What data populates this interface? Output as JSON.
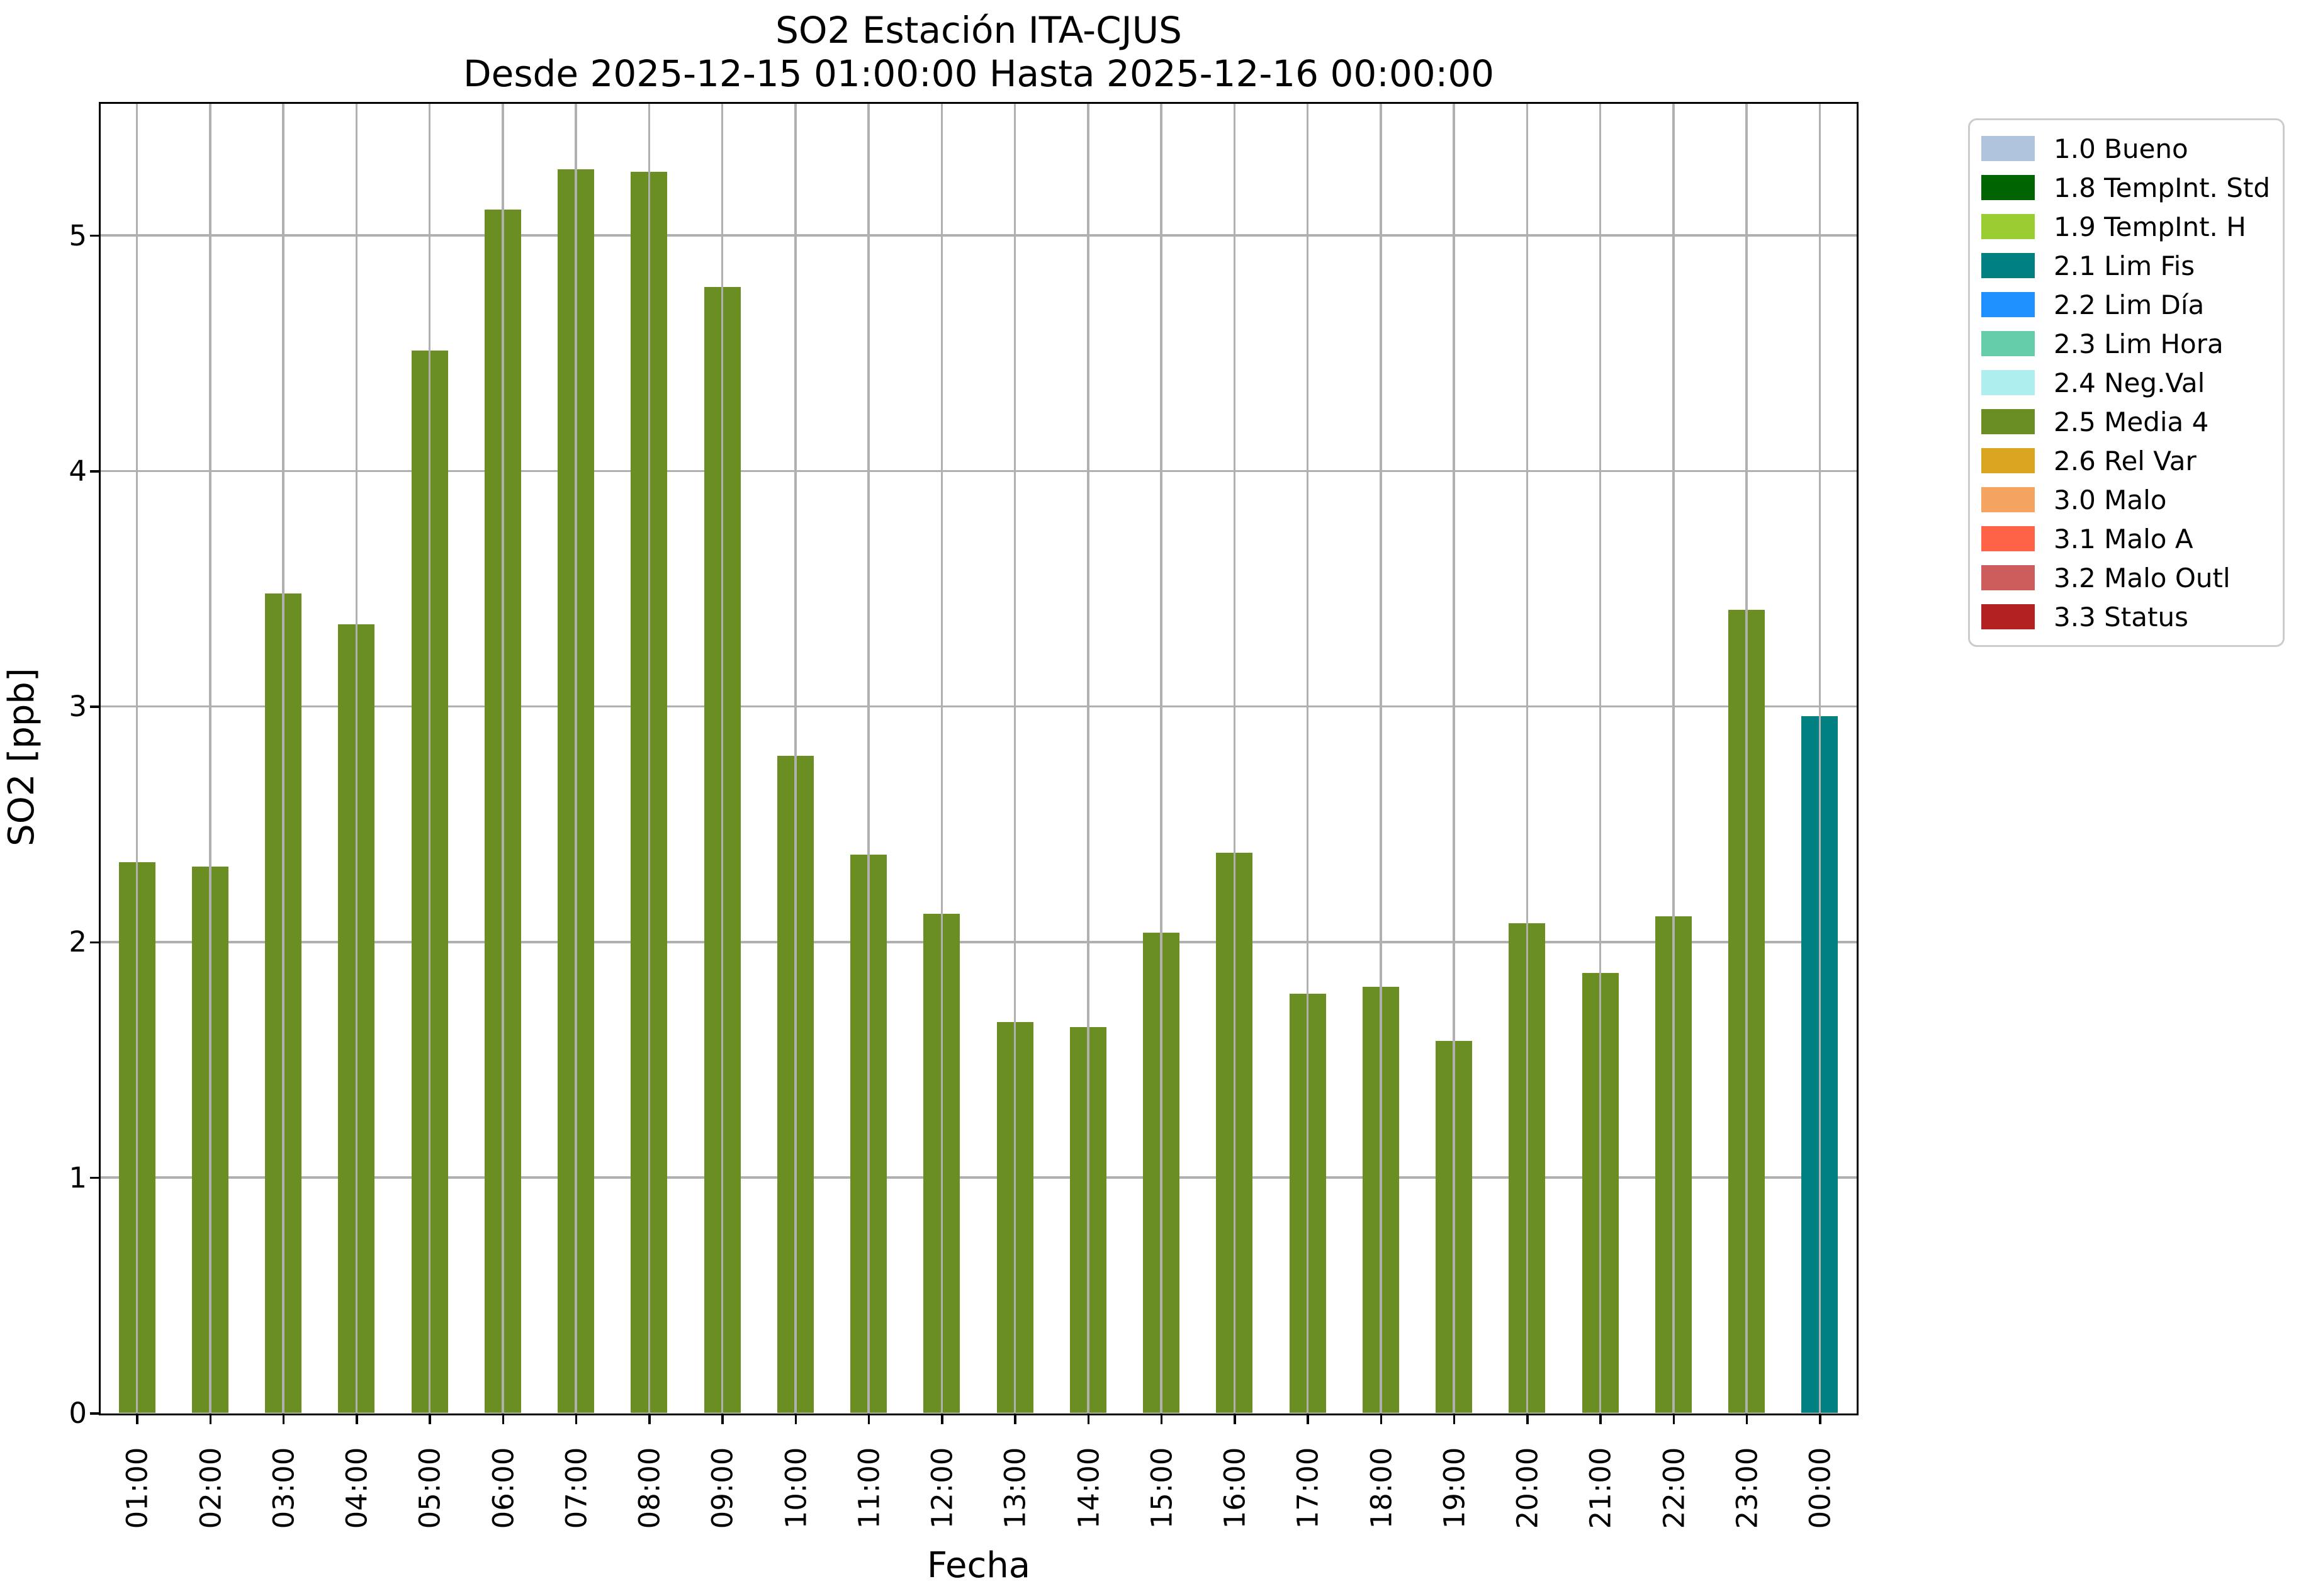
{
  "figure": {
    "title_line1": "SO2 Estación ITA-CJUS",
    "title_line2": "Desde 2025-12-15 01:00:00 Hasta 2025-12-16 00:00:00"
  },
  "chart_data": {
    "type": "bar",
    "title": "SO2 Estación ITA-CJUS\nDesde 2025-12-15 01:00:00 Hasta 2025-12-16 00:00:00",
    "xlabel": "Fecha",
    "ylabel": "SO2 [ppb]",
    "ylim": [
      0,
      5.56
    ],
    "y_ticks": [
      0,
      1,
      2,
      3,
      4,
      5
    ],
    "grid": true,
    "grid_color": "#b0b0b0",
    "legend_position": "upper-right-outside",
    "categories": [
      "01:00",
      "02:00",
      "03:00",
      "04:00",
      "05:00",
      "06:00",
      "07:00",
      "08:00",
      "09:00",
      "10:00",
      "11:00",
      "12:00",
      "13:00",
      "14:00",
      "15:00",
      "16:00",
      "17:00",
      "18:00",
      "19:00",
      "20:00",
      "21:00",
      "22:00",
      "23:00",
      "00:00"
    ],
    "values": [
      2.34,
      2.32,
      3.48,
      3.35,
      4.51,
      5.11,
      5.28,
      5.27,
      4.78,
      2.79,
      2.37,
      2.12,
      1.66,
      1.64,
      2.04,
      2.38,
      1.78,
      1.81,
      1.58,
      2.08,
      1.87,
      2.11,
      3.41,
      2.96
    ],
    "statuses": [
      "2.5 Media 4",
      "2.5 Media 4",
      "2.5 Media 4",
      "2.5 Media 4",
      "2.5 Media 4",
      "2.5 Media 4",
      "2.5 Media 4",
      "2.5 Media 4",
      "2.5 Media 4",
      "2.5 Media 4",
      "2.5 Media 4",
      "2.5 Media 4",
      "2.5 Media 4",
      "2.5 Media 4",
      "2.5 Media 4",
      "2.5 Media 4",
      "2.5 Media 4",
      "2.5 Media 4",
      "2.5 Media 4",
      "2.5 Media 4",
      "2.5 Media 4",
      "2.5 Media 4",
      "2.5 Media 4",
      "2.1 Lim Fis"
    ],
    "legend": [
      {
        "label": "1.0 Bueno",
        "color": "#b0c4de"
      },
      {
        "label": "1.8 TempInt. Std",
        "color": "#006400"
      },
      {
        "label": "1.9 TempInt. H",
        "color": "#9acd32"
      },
      {
        "label": "2.1 Lim Fis",
        "color": "#008080"
      },
      {
        "label": "2.2 Lim Día",
        "color": "#1e90ff"
      },
      {
        "label": "2.3 Lim Hora",
        "color": "#66cdaa"
      },
      {
        "label": "2.4 Neg.Val",
        "color": "#afeeee"
      },
      {
        "label": "2.5 Media 4",
        "color": "#6b8e23"
      },
      {
        "label": "2.6 Rel Var",
        "color": "#daa520"
      },
      {
        "label": "3.0 Malo",
        "color": "#f4a460"
      },
      {
        "label": "3.1 Malo A",
        "color": "#ff6347"
      },
      {
        "label": "3.2 Malo Outl",
        "color": "#cd5c5c"
      },
      {
        "label": "3.3 Status",
        "color": "#b22222"
      }
    ]
  }
}
